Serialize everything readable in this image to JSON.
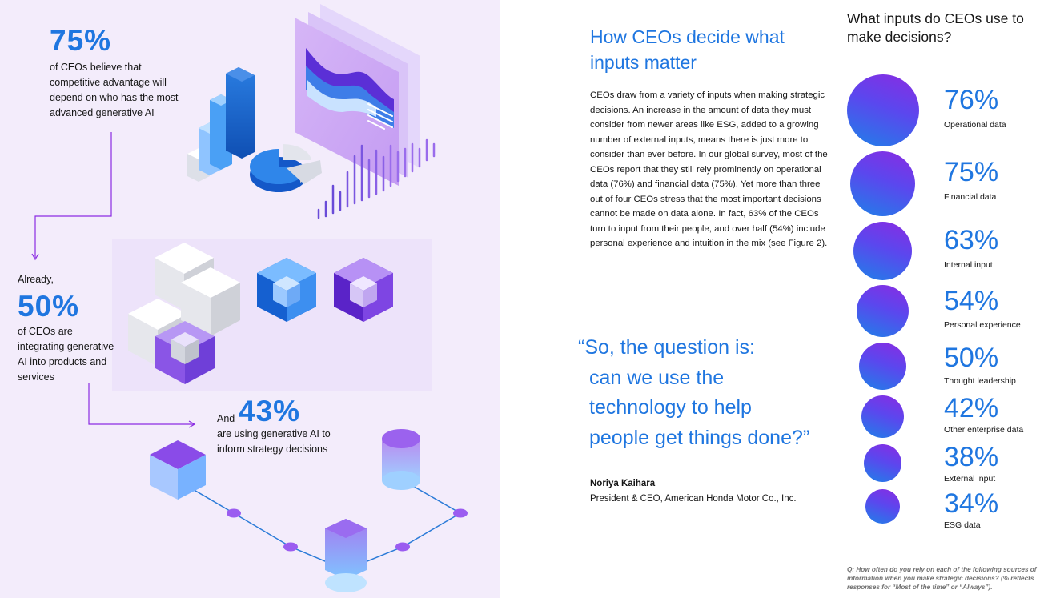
{
  "left": {
    "stat1": {
      "value": "75%",
      "text": "of CEOs believe that competitive advantage will depend on who has the most advanced generative AI"
    },
    "stat2": {
      "prefix": "Already,",
      "value": "50%",
      "text": "of CEOs are integrating generative AI into products and services"
    },
    "stat3": {
      "prefix": "And",
      "value": "43%",
      "text": "are using generative AI to inform strategy decisions"
    }
  },
  "middle": {
    "heading": "How CEOs decide what inputs matter",
    "body": "CEOs draw from a variety of inputs when making strategic decisions. An increase in the amount of data they must consider from newer areas like ESG, added to a growing number of external inputs, means there is just more to consider than ever before. In our global survey, most of  the CEOs report that they still rely prominently on operational data (76%) and financial data (75%). Yet more than three out of four CEOs stress that the most important decisions cannot be made on data alone. In fact, 63% of the CEOs turn to input from their people, and over half (54%) include personal experience and intuition in the mix (see Figure 2).",
    "quote_lines": [
      "“So, the question is:",
      "can we use the",
      "technology to help",
      "people get things done?”"
    ],
    "author_name": "Noriya Kaihara",
    "author_title": "President & CEO, American Honda Motor Co., Inc."
  },
  "right": {
    "title": "What inputs do CEOs use to make decisions?",
    "items": [
      {
        "pct": "76%",
        "label": "Operational data",
        "value": 76
      },
      {
        "pct": "75%",
        "label": "Financial data",
        "value": 75
      },
      {
        "pct": "63%",
        "label": "Internal input",
        "value": 63
      },
      {
        "pct": "54%",
        "label": "Personal experience",
        "value": 54
      },
      {
        "pct": "50%",
        "label": "Thought leadership",
        "value": 50
      },
      {
        "pct": "42%",
        "label": "Other enterprise data",
        "value": 42
      },
      {
        "pct": "38%",
        "label": "External input",
        "value": 38
      },
      {
        "pct": "34%",
        "label": "ESG data",
        "value": 34
      }
    ],
    "footnote": "Q: How often do you rely on each of the following sources of information when you make strategic decisions? (% reflects responses for “Most of the time” or “Always”)."
  },
  "colors": {
    "accent": "#1f76e0",
    "purple": "#8a2be2",
    "panel_bg": "#f3ecfb"
  }
}
